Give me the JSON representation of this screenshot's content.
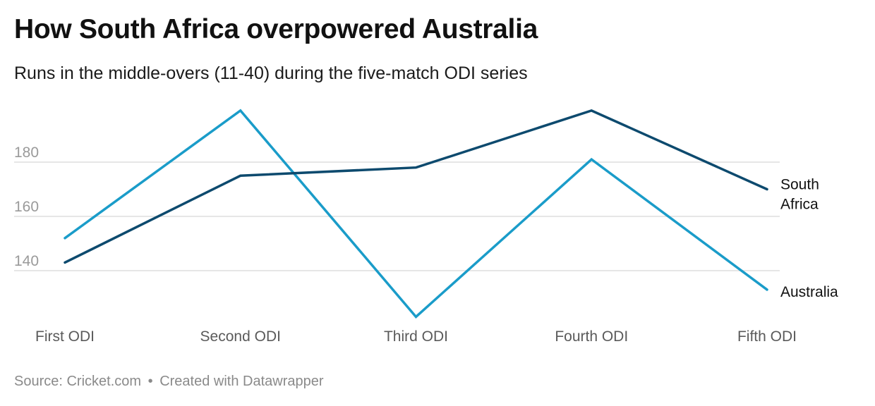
{
  "title": "How South Africa overpowered Australia",
  "subtitle": "Runs in the middle-overs (11-40) during the five-match ODI series",
  "footer": {
    "source": "Source: Cricket.com",
    "separator": "•",
    "credit": "Created with Datawrapper"
  },
  "colors": {
    "south_africa": "#0d4a6e",
    "australia": "#1a9cc9",
    "grid": "#dddddd"
  },
  "chart_data": {
    "type": "line",
    "title": "How South Africa overpowered Australia",
    "subtitle": "Runs in the middle-overs (11-40) during the five-match ODI series",
    "categories": [
      "First ODI",
      "Second ODI",
      "Third ODI",
      "Fourth ODI",
      "Fifth ODI"
    ],
    "series": [
      {
        "name": "South Africa",
        "label_lines": [
          "South",
          "Africa"
        ],
        "values": [
          143,
          175,
          178,
          199,
          170
        ]
      },
      {
        "name": "Australia",
        "label_lines": [
          "Australia"
        ],
        "values": [
          152,
          199,
          123,
          181,
          133
        ]
      }
    ],
    "y_ticks": [
      140,
      160,
      180
    ],
    "ylim": [
      120,
      200
    ],
    "grid": true,
    "xlabel": "",
    "ylabel": ""
  }
}
